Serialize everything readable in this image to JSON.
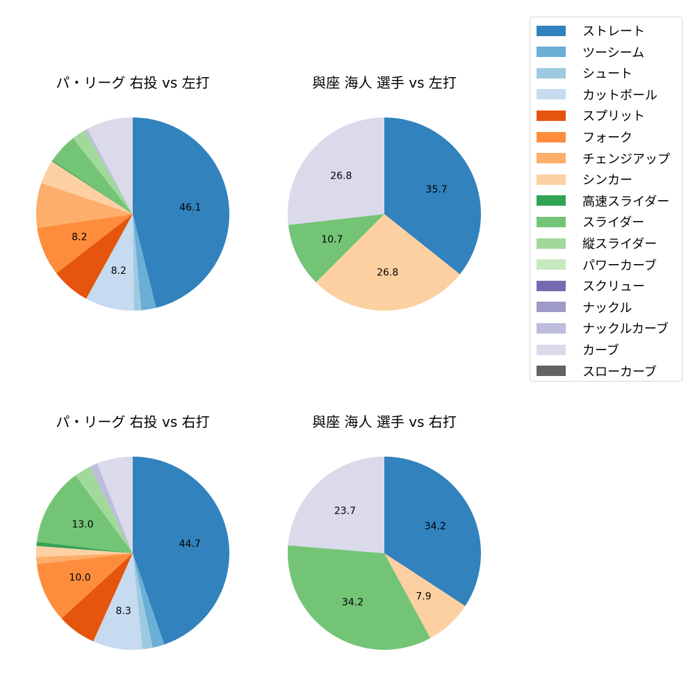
{
  "legend": {
    "items": [
      {
        "label": "ストレート",
        "color": "#3182bd"
      },
      {
        "label": "ツーシーム",
        "color": "#6baed6"
      },
      {
        "label": "シュート",
        "color": "#9ecae1"
      },
      {
        "label": "カットボール",
        "color": "#c6dbef"
      },
      {
        "label": "スプリット",
        "color": "#e6550d"
      },
      {
        "label": "フォーク",
        "color": "#fd8d3c"
      },
      {
        "label": "チェンジアップ",
        "color": "#fdae6b"
      },
      {
        "label": "シンカー",
        "color": "#fdd0a2"
      },
      {
        "label": "高速スライダー",
        "color": "#31a354"
      },
      {
        "label": "スライダー",
        "color": "#74c476"
      },
      {
        "label": "縦スライダー",
        "color": "#a1d99b"
      },
      {
        "label": "パワーカーブ",
        "color": "#c7e9c0"
      },
      {
        "label": "スクリュー",
        "color": "#756bb1"
      },
      {
        "label": "ナックル",
        "color": "#9e9ac8"
      },
      {
        "label": "ナックルカーブ",
        "color": "#bcbddc"
      },
      {
        "label": "カーブ",
        "color": "#dadaeb"
      },
      {
        "label": "スローカーブ",
        "color": "#636363"
      }
    ]
  },
  "chart_data": [
    {
      "type": "pie",
      "title": "パ・リーグ 右投 vs 左打",
      "categories": [
        "ストレート",
        "ツーシーム",
        "シュート",
        "カットボール",
        "スプリット",
        "フォーク",
        "チェンジアップ",
        "シンカー",
        "高速スライダー",
        "スライダー",
        "縦スライダー",
        "ナックルカーブ",
        "カーブ"
      ],
      "values": [
        46.1,
        2.5,
        1.2,
        8.2,
        6.5,
        8.2,
        7.5,
        4.0,
        0.2,
        5.0,
        2.3,
        0.5,
        7.8
      ],
      "labels_shown": [
        "46.1",
        "",
        "",
        "8.2",
        "",
        "8.2",
        "",
        "",
        "",
        "",
        "",
        "",
        ""
      ],
      "startangle": 90,
      "direction": "clockwise"
    },
    {
      "type": "pie",
      "title": "與座 海人 選手 vs 左打",
      "categories": [
        "ストレート",
        "シンカー",
        "スライダー",
        "カーブ"
      ],
      "values": [
        35.7,
        26.8,
        10.7,
        26.8
      ],
      "labels_shown": [
        "35.7",
        "26.8",
        "10.7",
        "26.8"
      ],
      "startangle": 90,
      "direction": "clockwise"
    },
    {
      "type": "pie",
      "title": "パ・リーグ 右投 vs 右打",
      "categories": [
        "ストレート",
        "ツーシーム",
        "シュート",
        "カットボール",
        "スプリット",
        "フォーク",
        "チェンジアップ",
        "シンカー",
        "高速スライダー",
        "スライダー",
        "縦スライダー",
        "ナックルカーブ",
        "カーブ"
      ],
      "values": [
        44.7,
        2.0,
        1.7,
        8.3,
        6.5,
        10.0,
        1.2,
        1.8,
        0.7,
        13.0,
        2.8,
        1.3,
        6.0
      ],
      "labels_shown": [
        "44.7",
        "",
        "",
        "8.3",
        "",
        "10.0",
        "",
        "",
        "",
        "13.0",
        "",
        "",
        ""
      ],
      "startangle": 90,
      "direction": "clockwise"
    },
    {
      "type": "pie",
      "title": "與座 海人 選手 vs 右打",
      "categories": [
        "ストレート",
        "シンカー",
        "スライダー",
        "カーブ"
      ],
      "values": [
        34.2,
        7.9,
        34.2,
        23.7
      ],
      "labels_shown": [
        "34.2",
        "7.9",
        "34.2",
        "23.7"
      ],
      "startangle": 90,
      "direction": "clockwise"
    }
  ],
  "panels": [
    {
      "title": "パ・リーグ 右投 vs 左打"
    },
    {
      "title": "與座 海人 選手 vs 左打"
    },
    {
      "title": "パ・リーグ 右投 vs 右打"
    },
    {
      "title": "與座 海人 選手 vs 右打"
    }
  ]
}
